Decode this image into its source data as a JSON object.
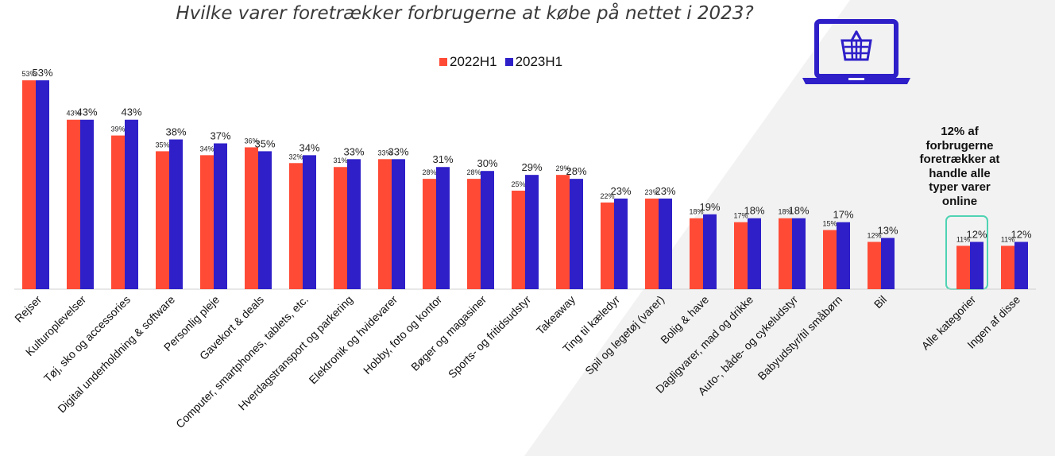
{
  "chart_data": {
    "type": "bar",
    "title": "Hvilke varer foretrækker forbrugerne at købe på nettet i 2023?",
    "xlabel": "",
    "ylabel": "",
    "ylim": [
      0,
      55
    ],
    "grid": false,
    "legend_position": "top",
    "categories": [
      "Rejser",
      "Kulturoplevelser",
      "Tøj, sko og accessories",
      "Digital underholdning & software",
      "Personlig pleje",
      "Gavekort & deals",
      "Computer, smartphones, tablets, etc.",
      "Hverdagstransport og parkering",
      "Elektronik og hvidevarer",
      "Hobby, foto og kontor",
      "Bøger og magasiner",
      "Sports- og fritidsudstyr",
      "Takeaway",
      "Ting til kæledyr",
      "Spil og legetøj (varer)",
      "Bolig & have",
      "Dagligvarer, mad og drikke",
      "Auto-, både- og cykeludstyr",
      "Babyudstyr/til småbørn",
      "Bil",
      "Alle kategorier",
      "Ingen af disse"
    ],
    "series": [
      {
        "name": "2022H1",
        "color": "#ff4b36",
        "values": [
          53,
          43,
          39,
          35,
          34,
          36,
          32,
          31,
          33,
          28,
          28,
          25,
          29,
          22,
          23,
          18,
          17,
          18,
          15,
          12,
          11,
          11
        ]
      },
      {
        "name": "2023H1",
        "color": "#2e1fc9",
        "values": [
          53,
          43,
          43,
          38,
          37,
          35,
          34,
          33,
          33,
          31,
          30,
          29,
          28,
          23,
          23,
          19,
          18,
          18,
          17,
          13,
          12,
          12
        ]
      }
    ],
    "annotations": [
      "12% af forbrugerne foretrækker at handle alle typer varer online"
    ]
  },
  "colors": {
    "background_shape": "#f2f2f2",
    "icon": "#2e1fc9",
    "highlight": "#4fd3b3"
  },
  "icons": [
    "laptop-shopping-basket-icon"
  ]
}
